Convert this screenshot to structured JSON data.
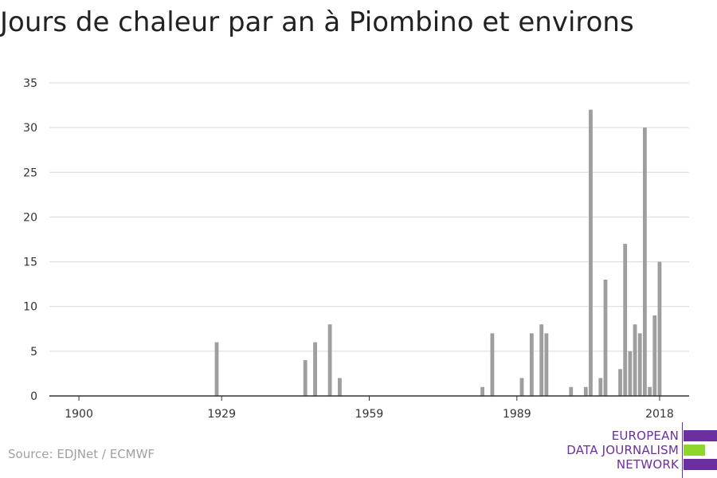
{
  "title": "Jours de chaleur par an à Piombino et environs",
  "source": "Source: EDJNet / ECMWF",
  "logo": {
    "lines": [
      "EUROPEAN",
      "DATA JOURNALISM",
      "NETWORK"
    ],
    "colors": {
      "text": "#6b2fa0",
      "purple": "#6b2fa0",
      "green": "#8ed62b"
    }
  },
  "colors": {
    "bar": "#9e9e9e",
    "grid": "#d9d9d9",
    "axis": "#333333"
  },
  "chart_data": {
    "type": "bar",
    "title": "Jours de chaleur par an à Piombino et environs",
    "xlabel": "",
    "ylabel": "",
    "ylim": [
      0,
      35
    ],
    "xlim": [
      1894,
      2024
    ],
    "yticks": [
      0,
      5,
      10,
      15,
      20,
      25,
      30,
      35
    ],
    "xticks": [
      "1900",
      "1929",
      "1959",
      "1989",
      "2018"
    ],
    "grid": true,
    "x": [
      1928,
      1946,
      1948,
      1951,
      1953,
      1982,
      1984,
      1990,
      1992,
      1994,
      1995,
      2000,
      2003,
      2004,
      2006,
      2007,
      2010,
      2011,
      2012,
      2013,
      2014,
      2015,
      2016,
      2017,
      2018,
      2019,
      2020
    ],
    "values": [
      6,
      4,
      6,
      8,
      2,
      1,
      7,
      2,
      7,
      8,
      7,
      1,
      1,
      32,
      2,
      13,
      3,
      17,
      5,
      8,
      7,
      30,
      1,
      9,
      15,
      0,
      0
    ]
  }
}
